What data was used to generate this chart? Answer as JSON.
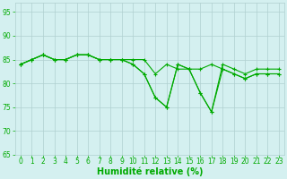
{
  "series": [
    [
      84,
      85,
      86,
      85,
      85,
      86,
      86,
      85,
      85,
      85,
      84,
      82,
      77,
      75,
      84,
      83,
      78,
      74,
      83,
      82,
      81,
      82,
      82,
      82
    ],
    [
      84,
      85,
      86,
      85,
      85,
      86,
      86,
      85,
      85,
      85,
      84,
      82,
      77,
      75,
      84,
      83,
      78,
      74,
      84,
      83,
      82,
      83,
      83,
      83
    ],
    [
      84,
      85,
      86,
      85,
      85,
      86,
      86,
      85,
      85,
      85,
      85,
      85,
      82,
      84,
      83,
      83,
      83,
      84,
      83,
      82,
      81,
      82,
      82,
      82
    ]
  ],
  "x": [
    0,
    1,
    2,
    3,
    4,
    5,
    6,
    7,
    8,
    9,
    10,
    11,
    12,
    13,
    14,
    15,
    16,
    17,
    18,
    19,
    20,
    21,
    22,
    23
  ],
  "line_color": "#00aa00",
  "marker": "+",
  "background_color": "#d4f0f0",
  "grid_color": "#b0d0d0",
  "xlabel": "Humidité relative (%)",
  "ylim": [
    65,
    97
  ],
  "xlim": [
    -0.5,
    23.5
  ],
  "yticks": [
    65,
    70,
    75,
    80,
    85,
    90,
    95
  ],
  "xticks": [
    0,
    1,
    2,
    3,
    4,
    5,
    6,
    7,
    8,
    9,
    10,
    11,
    12,
    13,
    14,
    15,
    16,
    17,
    18,
    19,
    20,
    21,
    22,
    23
  ],
  "tick_color": "#00aa00",
  "label_color": "#00aa00",
  "fontsize_xlabel": 7,
  "fontsize_tick": 5.5,
  "linewidth": 0.8,
  "markersize": 3,
  "markeredgewidth": 0.8
}
